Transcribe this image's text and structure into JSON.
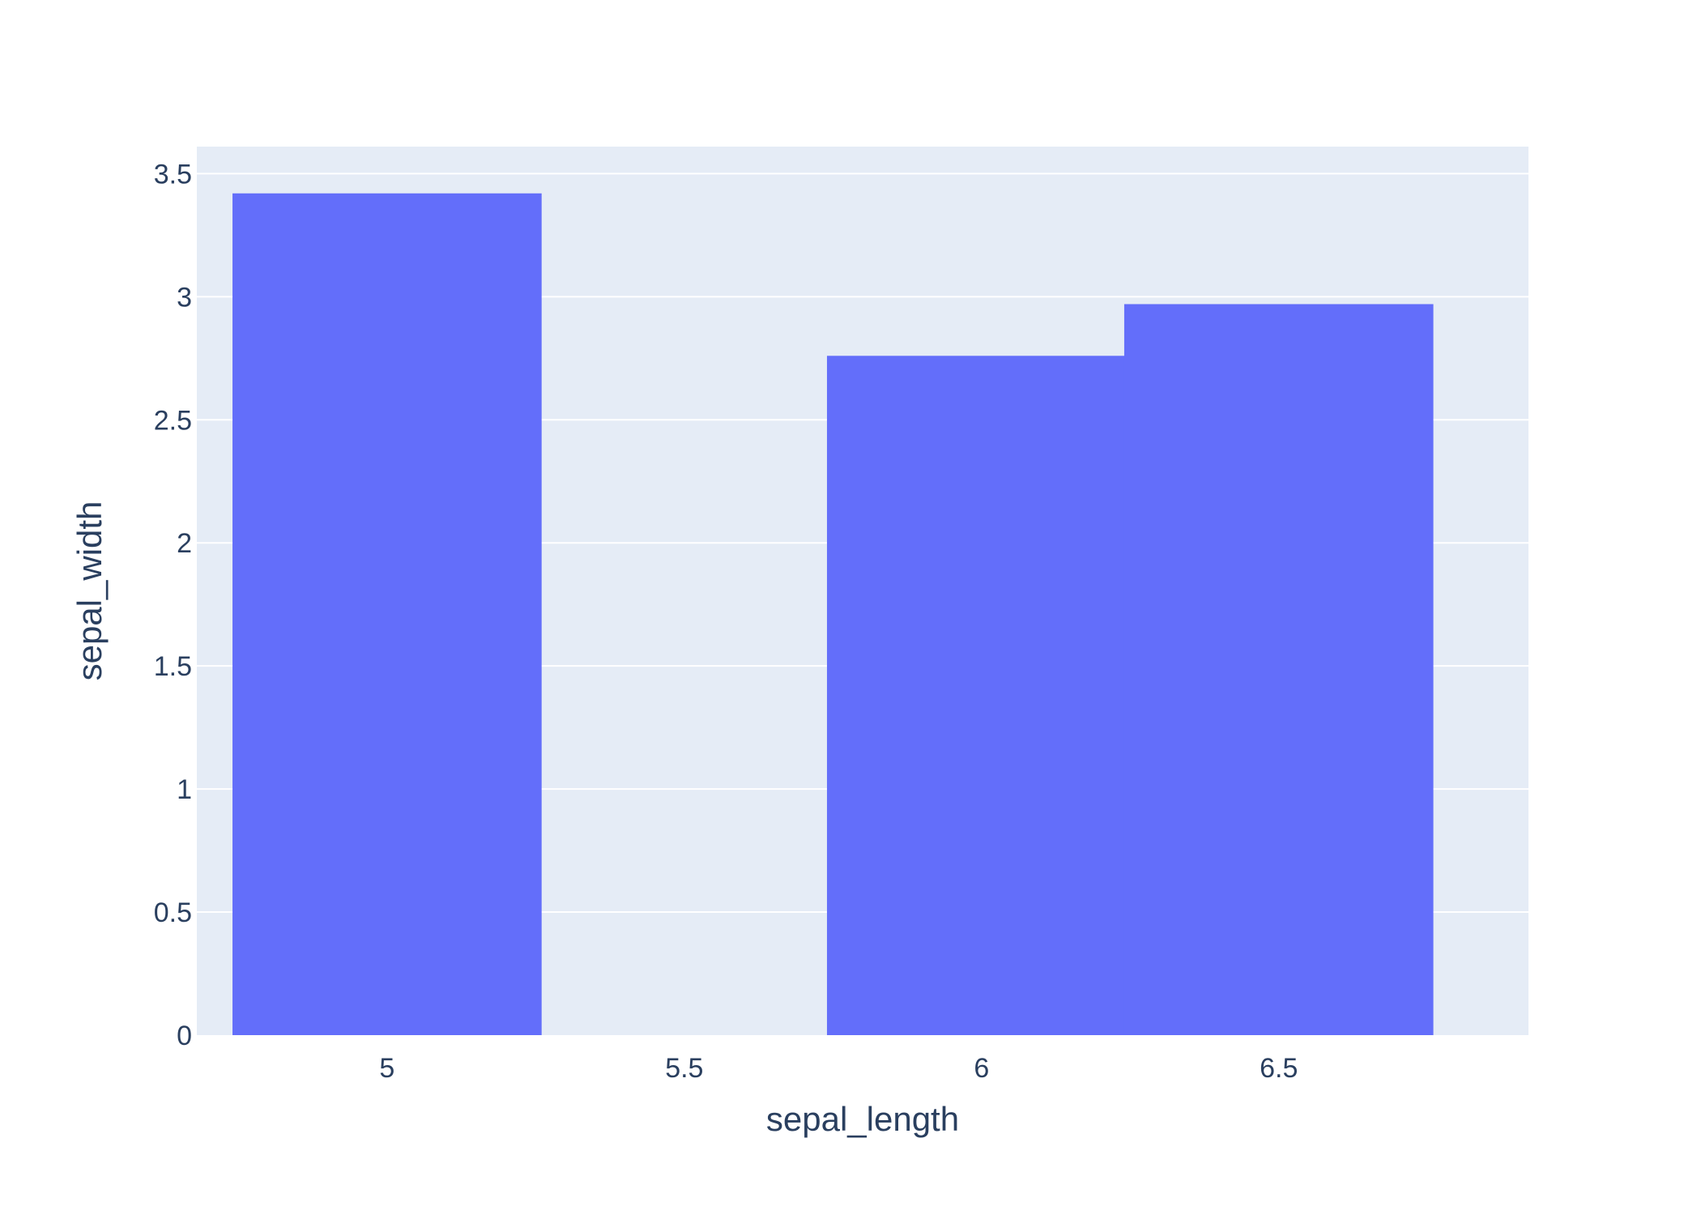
{
  "chart_data": {
    "type": "bar",
    "x": [
      5.0,
      6.0,
      6.5
    ],
    "values": [
      3.42,
      2.76,
      2.97
    ],
    "bar_width": 0.52,
    "xlabel": "sepal_length",
    "ylabel": "sepal_width",
    "xlim": [
      4.68,
      6.92
    ],
    "ylim": [
      0,
      3.61
    ],
    "x_ticks": [
      {
        "value": 5,
        "label": "5"
      },
      {
        "value": 5.5,
        "label": "5.5"
      },
      {
        "value": 6,
        "label": "6"
      },
      {
        "value": 6.5,
        "label": "6.5"
      }
    ],
    "y_ticks": [
      {
        "value": 0,
        "label": "0"
      },
      {
        "value": 0.5,
        "label": "0.5"
      },
      {
        "value": 1,
        "label": "1"
      },
      {
        "value": 1.5,
        "label": "1.5"
      },
      {
        "value": 2,
        "label": "2"
      },
      {
        "value": 2.5,
        "label": "2.5"
      },
      {
        "value": 3,
        "label": "3"
      },
      {
        "value": 3.5,
        "label": "3.5"
      }
    ],
    "grid": true,
    "colors": {
      "bar": "#636efa",
      "plot_background": "#e5ecf6",
      "gridline": "#ffffff",
      "text": "#2a3f5f"
    }
  }
}
